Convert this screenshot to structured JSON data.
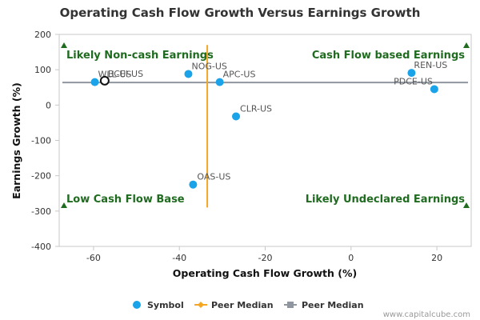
{
  "chart_data": {
    "type": "scatter",
    "title": "Operating Cash Flow Growth Versus Earnings Growth",
    "xlabel": "Operating Cash Flow Growth (%)",
    "ylabel": "Earnings Growth (%)",
    "xlim": [
      -68,
      28
    ],
    "ylim": [
      -400,
      200
    ],
    "xticks": [
      -60,
      -40,
      -20,
      0,
      20
    ],
    "yticks": [
      -400,
      -300,
      -200,
      -100,
      0,
      100,
      200
    ],
    "grid": false,
    "legend_position": "bottom",
    "series": [
      {
        "name": "Symbol",
        "color": "#1aa3e8",
        "points": [
          {
            "label": "WLL-US",
            "x": -59.7,
            "y": 65
          },
          {
            "label": "BCEI-US",
            "x": -57.4,
            "y": 69,
            "highlighted": true
          },
          {
            "label": "NOG-US",
            "x": -37.9,
            "y": 88
          },
          {
            "label": "APC-US",
            "x": -30.6,
            "y": 65
          },
          {
            "label": "CLR-US",
            "x": -26.8,
            "y": -32
          },
          {
            "label": "OAS-US",
            "x": -36.8,
            "y": -225
          },
          {
            "label": "REN-US",
            "x": 14.1,
            "y": 91
          },
          {
            "label": "PDCE-US",
            "x": 19.4,
            "y": 45
          }
        ]
      }
    ],
    "peer_median": {
      "x": -33.5,
      "y": 64,
      "vertical_name": "Peer Median",
      "horizontal_name": "Peer Median",
      "vertical_color": "#f5a623",
      "horizontal_color": "#8f96a0",
      "vertical_y_range": [
        -290,
        170
      ]
    },
    "quadrant_labels": [
      {
        "text": "Likely Non-cash Earnings",
        "position": "top-left"
      },
      {
        "text": "Cash Flow based Earnings",
        "position": "top-right"
      },
      {
        "text": "Low Cash Flow Base",
        "position": "bottom-left"
      },
      {
        "text": "Likely Undeclared Earnings",
        "position": "bottom-right"
      }
    ],
    "quadrant_color": "#1f6b1f",
    "credit": "www.capitalcube.com"
  }
}
